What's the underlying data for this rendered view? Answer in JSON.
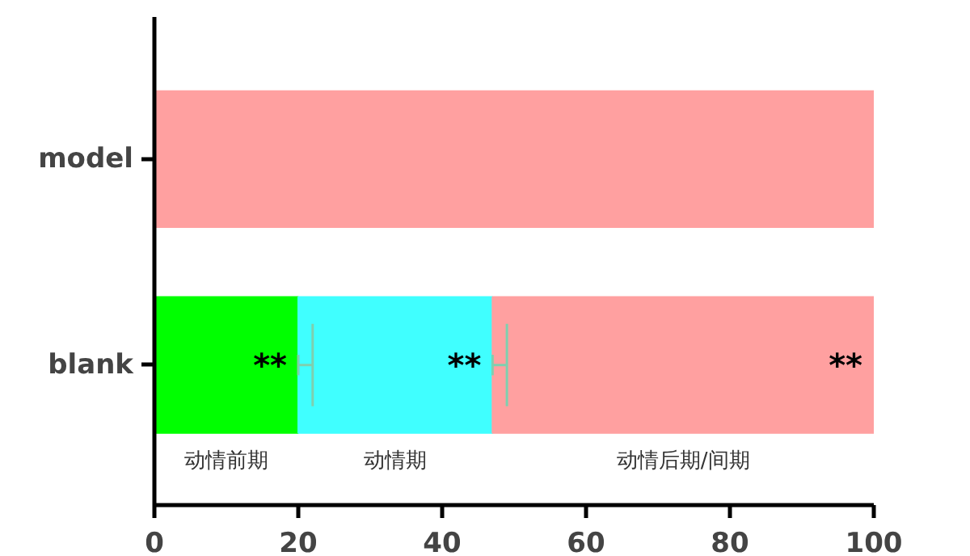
{
  "chart_data": {
    "type": "bar",
    "orientation": "horizontal",
    "stacked": true,
    "categories": [
      "model",
      "blank"
    ],
    "series": [
      {
        "name": "动情前期",
        "color": "#00ff00",
        "values": [
          0,
          20
        ],
        "errors": [
          null,
          [
            20,
            22
          ]
        ]
      },
      {
        "name": "动情期",
        "color": "#40ffff",
        "values": [
          0,
          27
        ],
        "errors": [
          null,
          [
            47,
            49
          ]
        ]
      },
      {
        "name": "动情后期/间期",
        "color": "#ffa0a0",
        "values": [
          100,
          53
        ]
      }
    ],
    "xlim": [
      0,
      100
    ],
    "xticks": [
      0,
      20,
      40,
      60,
      80,
      100
    ],
    "grid": false,
    "annotations": [
      "**",
      "**",
      "**"
    ]
  }
}
